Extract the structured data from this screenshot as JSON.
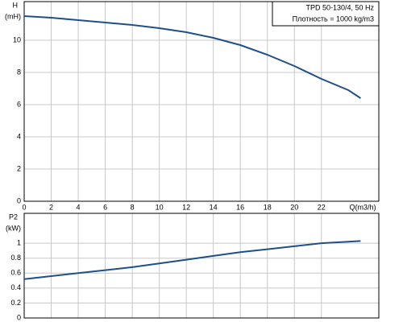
{
  "chart_data": [
    {
      "type": "line",
      "ylabel": "H",
      "yunit": "(mH)",
      "xlabel": "Q(m3/h)",
      "legend_lines": [
        "TPD 50-130/4, 50 Hz",
        "Плотность = 1000 kg/m3"
      ],
      "x": [
        0,
        2,
        4,
        6,
        8,
        10,
        12,
        14,
        16,
        18,
        20,
        22,
        24,
        24.9
      ],
      "series": [
        {
          "color": "#1f4f8a",
          "values": [
            11.5,
            11.4,
            11.25,
            11.1,
            10.95,
            10.75,
            10.5,
            10.15,
            9.7,
            9.1,
            8.4,
            7.6,
            6.9,
            6.4
          ]
        }
      ],
      "xlim": [
        0,
        26.25
      ],
      "xticks": [
        0,
        2,
        4,
        6,
        8,
        10,
        12,
        14,
        16,
        18,
        20,
        22
      ],
      "ylim": [
        0,
        12.4
      ],
      "yticks": [
        0,
        2,
        4,
        6,
        8,
        10
      ],
      "grid": true
    },
    {
      "type": "line",
      "ylabel": "P2",
      "yunit": "(kW)",
      "x": [
        0,
        2,
        4,
        6,
        8,
        10,
        12,
        14,
        16,
        18,
        20,
        22,
        24.9
      ],
      "series": [
        {
          "color": "#1f4f8a",
          "values": [
            0.52,
            0.56,
            0.6,
            0.64,
            0.68,
            0.73,
            0.78,
            0.83,
            0.88,
            0.92,
            0.96,
            1.0,
            1.03
          ]
        }
      ],
      "xlim": [
        0,
        26.25
      ],
      "xticks": [
        0,
        2,
        4,
        6,
        8,
        10,
        12,
        14,
        16,
        18,
        20,
        22
      ],
      "ylim": [
        0,
        1.4
      ],
      "yticks": [
        0,
        0.2,
        0.4,
        0.6,
        0.8,
        1
      ],
      "grid": true
    }
  ]
}
